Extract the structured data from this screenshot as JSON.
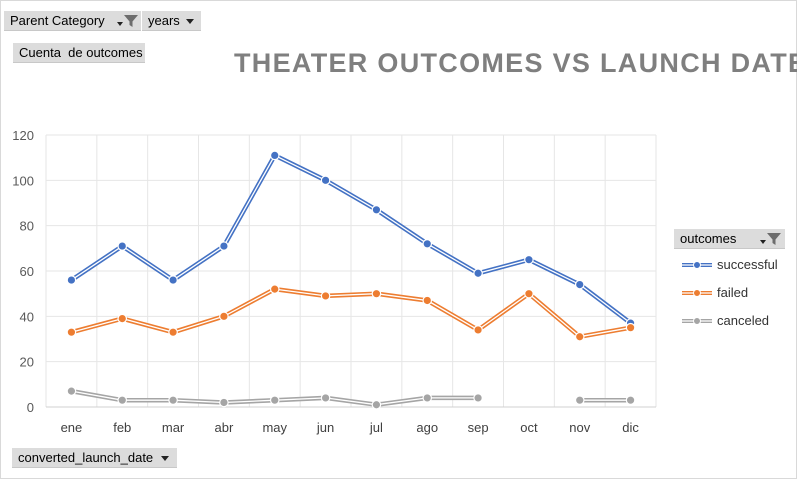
{
  "filters": {
    "parent_category": "Parent Category",
    "years": "years",
    "values_field": "Cuenta  de outcomes",
    "axis_field": "converted_launch_date"
  },
  "legend": {
    "header": "outcomes"
  },
  "colors": {
    "successful": "#4472c4",
    "failed": "#ed7d31",
    "canceled": "#a5a5a5",
    "title": "#7f7f7f",
    "grid": "#e6e6e6",
    "axis_text": "#595959"
  },
  "icons": {
    "filter": "funnel-icon",
    "dropdown": "chevron-down-icon"
  },
  "chart_data": {
    "type": "line",
    "title": "THEATER OUTCOMES VS LAUNCH DATE",
    "categories": [
      "ene",
      "feb",
      "mar",
      "abr",
      "may",
      "jun",
      "jul",
      "ago",
      "sep",
      "oct",
      "nov",
      "dic"
    ],
    "ylim": [
      0,
      120
    ],
    "yticks": [
      0,
      20,
      40,
      60,
      80,
      100,
      120
    ],
    "grid": true,
    "legend_position": "right",
    "series": [
      {
        "name": "successful",
        "values": [
          56,
          71,
          56,
          71,
          111,
          100,
          87,
          72,
          59,
          65,
          54,
          37
        ]
      },
      {
        "name": "failed",
        "values": [
          33,
          39,
          33,
          40,
          52,
          49,
          50,
          47,
          34,
          50,
          31,
          35
        ]
      },
      {
        "name": "canceled",
        "values": [
          7,
          3,
          3,
          2,
          3,
          4,
          1,
          4,
          4,
          null,
          3,
          3
        ]
      }
    ]
  }
}
